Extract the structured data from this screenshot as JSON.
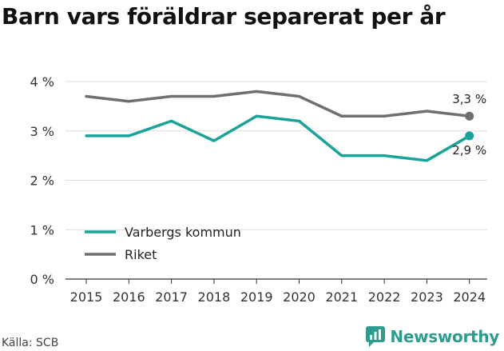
{
  "title": "Barn vars föräldrar separerat per år",
  "source": "Källa: SCB",
  "brand": {
    "name": "Newsworthy",
    "icon": "newsworthy-logo-icon",
    "color": "#2a9d8f"
  },
  "chart_data": {
    "type": "line",
    "title": "Barn vars föräldrar separerat per år",
    "x": [
      "2015",
      "2016",
      "2017",
      "2018",
      "2019",
      "2020",
      "2021",
      "2022",
      "2023",
      "2024"
    ],
    "series": [
      {
        "name": "Varbergs kommun",
        "color": "#1aa39a",
        "values": [
          2.9,
          2.9,
          3.2,
          2.8,
          3.3,
          3.2,
          2.5,
          2.5,
          2.4,
          2.9
        ],
        "end_label": "2,9 %"
      },
      {
        "name": "Riket",
        "color": "#6f6e73",
        "values": [
          3.7,
          3.6,
          3.7,
          3.7,
          3.8,
          3.7,
          3.3,
          3.3,
          3.4,
          3.3
        ],
        "end_label": "3,3 %"
      }
    ],
    "yticks": [
      0,
      1,
      2,
      3,
      4
    ],
    "ytick_labels": [
      "0 %",
      "1 %",
      "2 %",
      "3 %",
      "4 %"
    ],
    "ylim": [
      0,
      4
    ],
    "xlabel": "",
    "ylabel": "",
    "grid": true,
    "legend_position": "bottom-left"
  }
}
